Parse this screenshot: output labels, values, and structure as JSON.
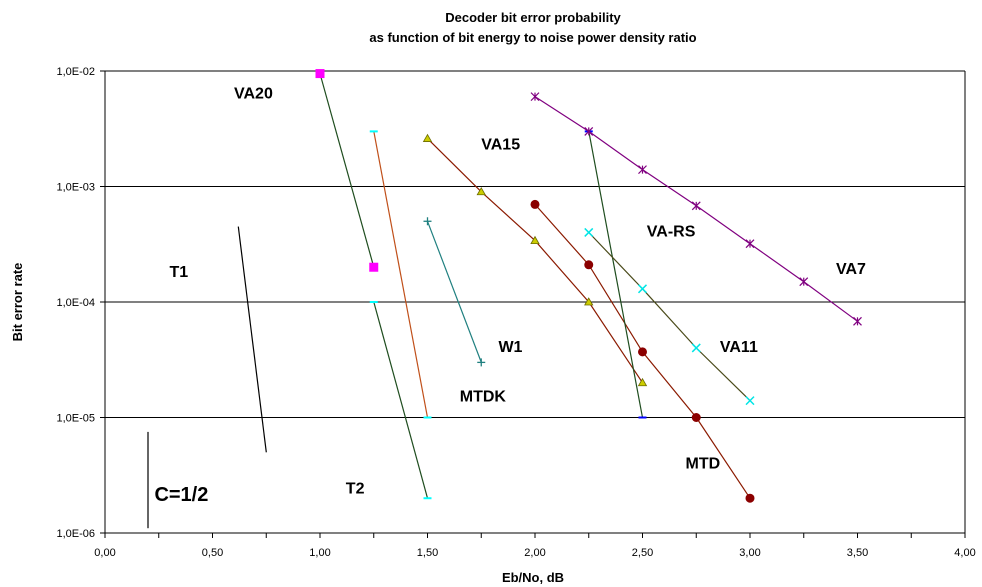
{
  "chart_data": {
    "type": "line",
    "title": "Decoder bit error  probability",
    "subtitle": "as function of bit energy to noise power density ratio",
    "xlabel": "Eb/No, dB",
    "ylabel": "Bit error rate",
    "xlim": [
      0,
      4
    ],
    "ylim": [
      1e-06,
      0.01
    ],
    "yscale": "log",
    "grid": "horizontal",
    "x_ticks": [
      "0,00",
      "0,50",
      "1,00",
      "1,50",
      "2,00",
      "2,50",
      "3,00",
      "3,50",
      "4,00"
    ],
    "y_ticks": [
      "1,0E-06",
      "1,0E-05",
      "1,0E-04",
      "1,0E-03",
      "1,0E-02"
    ],
    "series": [
      {
        "name": "VA20",
        "color": "#1f4d1f",
        "marker": "square",
        "marker_color": "#ff00ff",
        "x": [
          1.0,
          1.25
        ],
        "y": [
          0.0095,
          0.0002
        ]
      },
      {
        "name": "T2",
        "color": "#1f4d1f",
        "marker": "dash",
        "marker_color": "#00ffff",
        "x": [
          1.25,
          1.5
        ],
        "y": [
          0.0001,
          2e-06
        ]
      },
      {
        "name": "MTDK",
        "color": "#c0501a",
        "marker": "dash",
        "marker_color": "#00ffff",
        "x": [
          1.25,
          1.5
        ],
        "y": [
          0.003,
          1e-05
        ]
      },
      {
        "name": "W1",
        "color": "#208080",
        "marker": "plus",
        "marker_color": "#208080",
        "x": [
          1.5,
          1.75
        ],
        "y": [
          0.0005,
          3e-05
        ]
      },
      {
        "name": "VA15",
        "color": "#8b1a00",
        "marker": "triangle",
        "marker_color": "#cccc00",
        "x": [
          1.5,
          1.75,
          2.0,
          2.25,
          2.5
        ],
        "y": [
          0.0026,
          0.0009,
          0.00034,
          0.0001,
          2e-05
        ]
      },
      {
        "name": "MTD",
        "color": "#8b1a00",
        "marker": "circle",
        "marker_color": "#8b0000",
        "x": [
          2.0,
          2.25,
          2.5,
          2.75,
          3.0
        ],
        "y": [
          0.0007,
          0.00021,
          3.7e-05,
          1e-05,
          2e-06
        ]
      },
      {
        "name": "VA-RS",
        "color": "#1f4d1f",
        "marker": "dash",
        "marker_color": "#0000ff",
        "x": [
          2.25,
          2.5
        ],
        "y": [
          0.003,
          1e-05
        ]
      },
      {
        "name": "VA11",
        "color": "#4a4a1a",
        "marker": "x",
        "marker_color": "#00e5e5",
        "x": [
          2.25,
          2.5,
          2.75,
          3.0
        ],
        "y": [
          0.0004,
          0.00013,
          4e-05,
          1.4e-05
        ]
      },
      {
        "name": "VA7",
        "color": "#800080",
        "marker": "star",
        "marker_color": "#800080",
        "x": [
          2.0,
          2.25,
          2.5,
          2.75,
          3.0,
          3.25,
          3.5
        ],
        "y": [
          0.006,
          0.003,
          0.0014,
          0.00068,
          0.00032,
          0.00015,
          6.8e-05
        ]
      },
      {
        "name": "T1",
        "color": "#000000",
        "marker": "none",
        "marker_color": "#000000",
        "x": [
          0.62,
          0.75
        ],
        "y": [
          0.00045,
          5e-06
        ]
      },
      {
        "name": "C=1/2",
        "color": "#000000",
        "marker": "none",
        "marker_color": "#000000",
        "x": [
          0.2,
          0.2
        ],
        "y": [
          7.5e-06,
          1.1e-06
        ]
      }
    ],
    "labels": [
      {
        "text": "VA20",
        "x": 0.6,
        "y": 0.0058
      },
      {
        "text": "VA15",
        "x": 1.75,
        "y": 0.0021
      },
      {
        "text": "VA-RS",
        "x": 2.52,
        "y": 0.00037
      },
      {
        "text": "VA7",
        "x": 3.4,
        "y": 0.000175
      },
      {
        "text": "T1",
        "x": 0.3,
        "y": 0.000165
      },
      {
        "text": "W1",
        "x": 1.83,
        "y": 3.7e-05
      },
      {
        "text": "VA11",
        "x": 2.86,
        "y": 3.7e-05
      },
      {
        "text": "MTDK",
        "x": 1.65,
        "y": 1.38e-05
      },
      {
        "text": "MTD",
        "x": 2.7,
        "y": 3.6e-06
      },
      {
        "text": "T2",
        "x": 1.12,
        "y": 2.2e-06
      },
      {
        "text": "C=1/2",
        "x": 0.23,
        "y": 1.9e-06
      }
    ]
  }
}
